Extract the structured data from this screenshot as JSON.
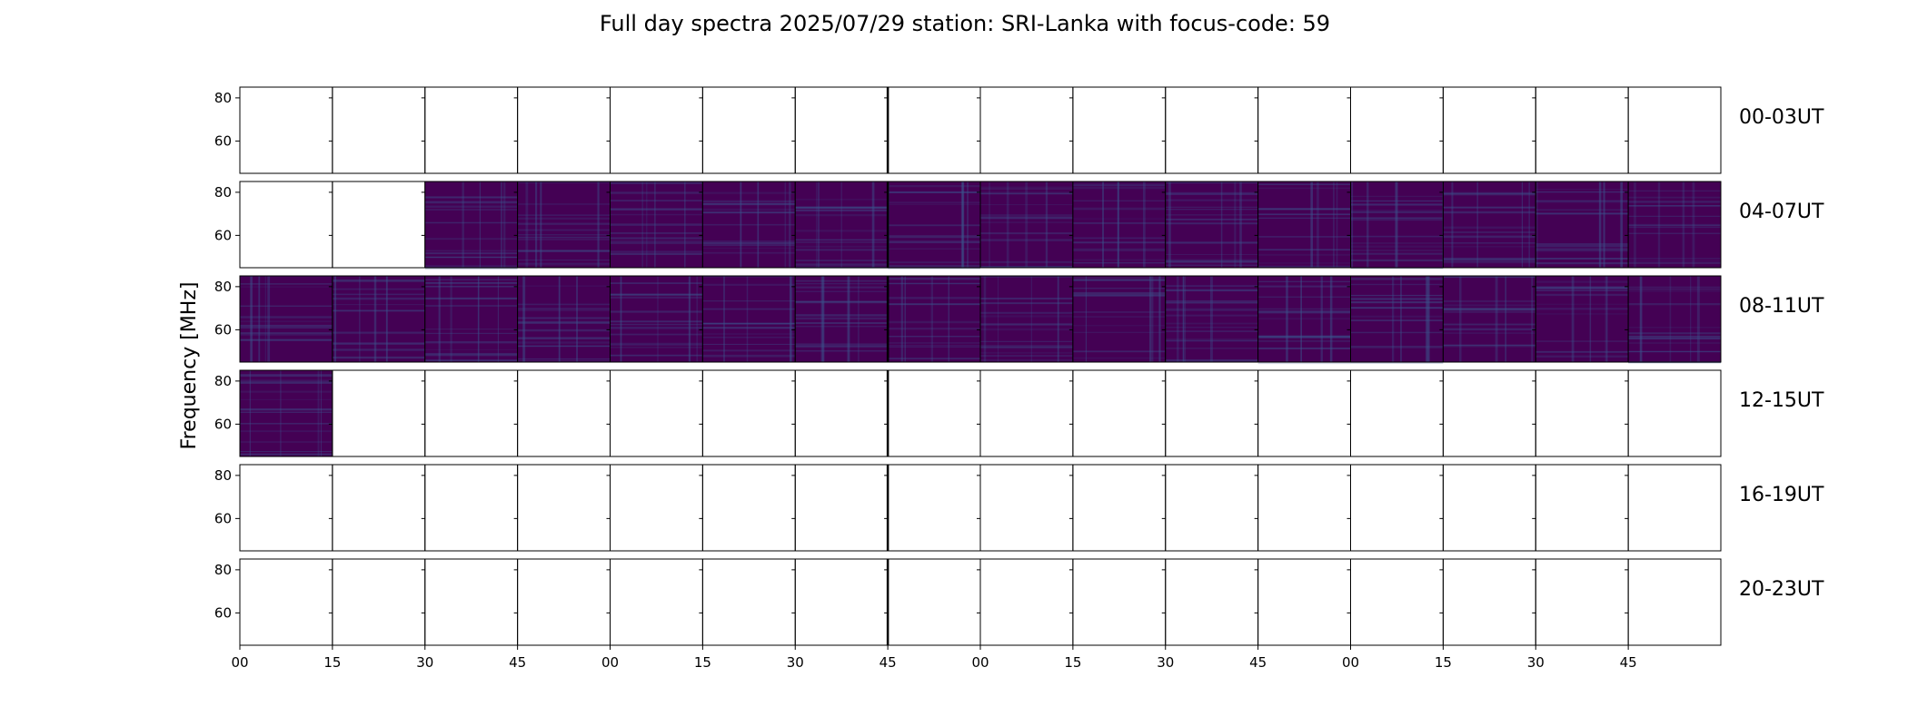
{
  "chart_data": {
    "type": "heatmap",
    "title": "Full day spectra 2025/07/29 station: SRI-Lanka with focus-code: 59",
    "ylabel": "Frequency [MHz]",
    "xlabel": "",
    "ylim": [
      45,
      85
    ],
    "yticks": [
      60,
      80
    ],
    "xtick_labels": [
      "00",
      "15",
      "30",
      "45",
      "00",
      "15",
      "30",
      "45",
      "00",
      "15",
      "30",
      "45",
      "00",
      "15",
      "30",
      "45"
    ],
    "colormap": [
      "#440154",
      "#3b528b",
      "#21908d",
      "#5dc963",
      "#fde725"
    ],
    "grid": false,
    "rows": [
      {
        "label": "00-03UT",
        "panels": [
          0,
          0,
          0,
          0,
          0,
          0,
          0,
          0,
          0,
          0,
          0,
          0,
          0,
          0,
          0,
          0
        ]
      },
      {
        "label": "04-07UT",
        "panels": [
          0,
          0,
          1,
          1,
          1,
          1,
          1,
          1,
          1,
          1,
          1,
          1,
          1,
          1,
          1,
          1
        ]
      },
      {
        "label": "08-11UT",
        "panels": [
          1,
          1,
          1,
          1,
          1,
          1,
          1,
          1,
          1,
          1,
          1,
          1,
          1,
          1,
          1,
          1
        ]
      },
      {
        "label": "12-15UT",
        "panels": [
          1,
          0,
          0,
          0,
          0,
          0,
          0,
          0,
          0,
          0,
          0,
          0,
          0,
          0,
          0,
          0
        ]
      },
      {
        "label": "16-19UT",
        "panels": [
          0,
          0,
          0,
          0,
          0,
          0,
          0,
          0,
          0,
          0,
          0,
          0,
          0,
          0,
          0,
          0
        ]
      },
      {
        "label": "20-23UT",
        "panels": [
          0,
          0,
          0,
          0,
          0,
          0,
          0,
          0,
          0,
          0,
          0,
          0,
          0,
          0,
          0,
          0
        ]
      }
    ]
  }
}
